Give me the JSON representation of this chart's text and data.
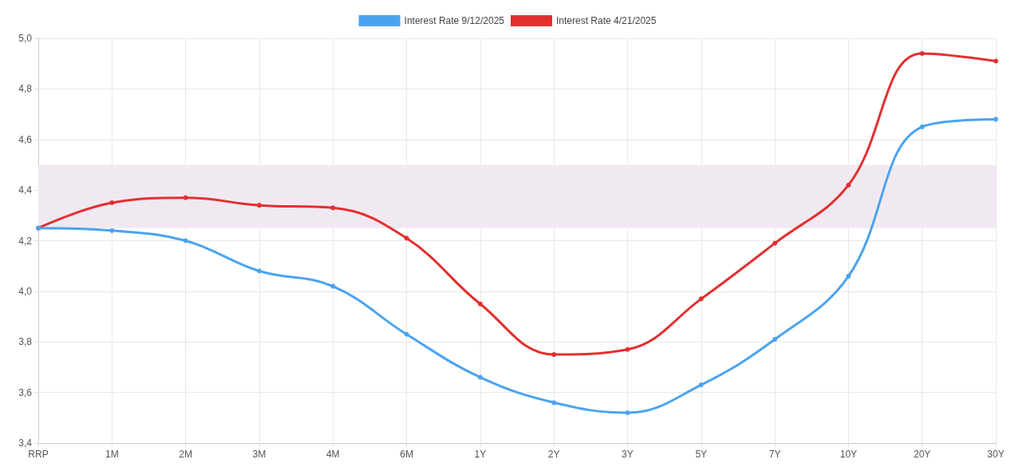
{
  "chart_data": {
    "type": "line",
    "categories": [
      "RRP",
      "1M",
      "2M",
      "3M",
      "4M",
      "6M",
      "1Y",
      "2Y",
      "3Y",
      "5Y",
      "7Y",
      "10Y",
      "20Y",
      "30Y"
    ],
    "series": [
      {
        "name": "Interest Rate 9/12/2025",
        "color": "#4ba3f0",
        "values": [
          4.25,
          4.24,
          4.2,
          4.08,
          4.02,
          3.83,
          3.66,
          3.56,
          3.52,
          3.63,
          3.81,
          4.06,
          4.65,
          4.68
        ]
      },
      {
        "name": "Interest Rate 4/21/2025",
        "color": "#e3302f",
        "values": [
          4.25,
          4.35,
          4.37,
          4.34,
          4.33,
          4.21,
          3.95,
          3.75,
          3.77,
          3.97,
          4.19,
          4.42,
          4.94,
          4.91
        ]
      }
    ],
    "ylim": [
      3.4,
      5.0
    ],
    "yticks": [
      {
        "value": 3.4,
        "label": "3,4"
      },
      {
        "value": 3.6,
        "label": "3,6"
      },
      {
        "value": 3.8,
        "label": "3,8"
      },
      {
        "value": 4.0,
        "label": "4,0"
      },
      {
        "value": 4.2,
        "label": "4,2"
      },
      {
        "value": 4.4,
        "label": "4,4"
      },
      {
        "value": 4.6,
        "label": "4,6"
      },
      {
        "value": 4.8,
        "label": "4,8"
      },
      {
        "value": 5.0,
        "label": "5,0"
      }
    ],
    "bands": [
      {
        "axis": "y",
        "from": 4.25,
        "to": 4.5,
        "color": "#f1e9f1"
      }
    ],
    "grid": true,
    "legend": "top",
    "marker": "circle",
    "line_style": "solid"
  }
}
